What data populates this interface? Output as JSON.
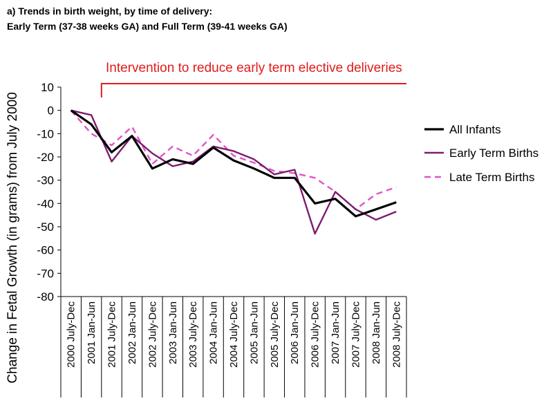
{
  "chart_data": {
    "type": "line",
    "title_line1": "a)  Trends in birth weight, by time of delivery:",
    "title_line2": "Early Term (37-38 weeks GA) and Full Term (39-41 weeks GA)",
    "ylabel": "Change in Fetal Growth  (in grams)  from  July 2000",
    "xlabel": "",
    "ylim": [
      -80,
      10
    ],
    "yticks": [
      10,
      0,
      -10,
      -20,
      -30,
      -40,
      -50,
      -60,
      -70,
      -80
    ],
    "categories": [
      "2000 July-Dec",
      "2001 Jan-Jun",
      "2001 July-Dec",
      "2002 Jan-Jun",
      "2002 July-Dec",
      "2003 Jan-Jun",
      "2003 July-Dec",
      "2004 Jan-Jun",
      "2004 July-Dec",
      "2005 Jan-Jun",
      "2005 July-Dec",
      "2006 Jan-Jun",
      "2006 July-Dec",
      "2007 Jan-Jun",
      "2007 July-Dec",
      "2008 Jan-Jun",
      "2008 July-Dec"
    ],
    "series": [
      {
        "name": "All Infants",
        "color": "#000000",
        "style": "solid",
        "values": [
          0,
          -6,
          -18,
          -11,
          -25,
          -21,
          -23,
          -16,
          -21.5,
          -25,
          -29,
          -29,
          -40,
          -38,
          -45.5,
          -42.5,
          -39.5
        ]
      },
      {
        "name": "Early Term Births",
        "color": "#7b1c6f",
        "style": "solid",
        "values": [
          0,
          -2,
          -22,
          -11,
          -18.5,
          -24,
          -22,
          -15.5,
          -17.5,
          -21,
          -27.5,
          -25.5,
          -53,
          -35,
          -42.5,
          -47,
          -43.5
        ]
      },
      {
        "name": "Late Term Births",
        "color": "#e153c5",
        "style": "dashed",
        "values": [
          0,
          -10,
          -15,
          -7,
          -23,
          -15.5,
          -19.5,
          -10.5,
          -19.5,
          -22.5,
          -26,
          -27,
          -29,
          -35,
          -42.5,
          -36,
          -33
        ]
      }
    ],
    "annotation": {
      "text": "Intervention to reduce early term elective deliveries",
      "color": "#e01b1b",
      "start_category": "2001 Jan-Jun"
    },
    "legend_position": "right",
    "grid": false
  }
}
